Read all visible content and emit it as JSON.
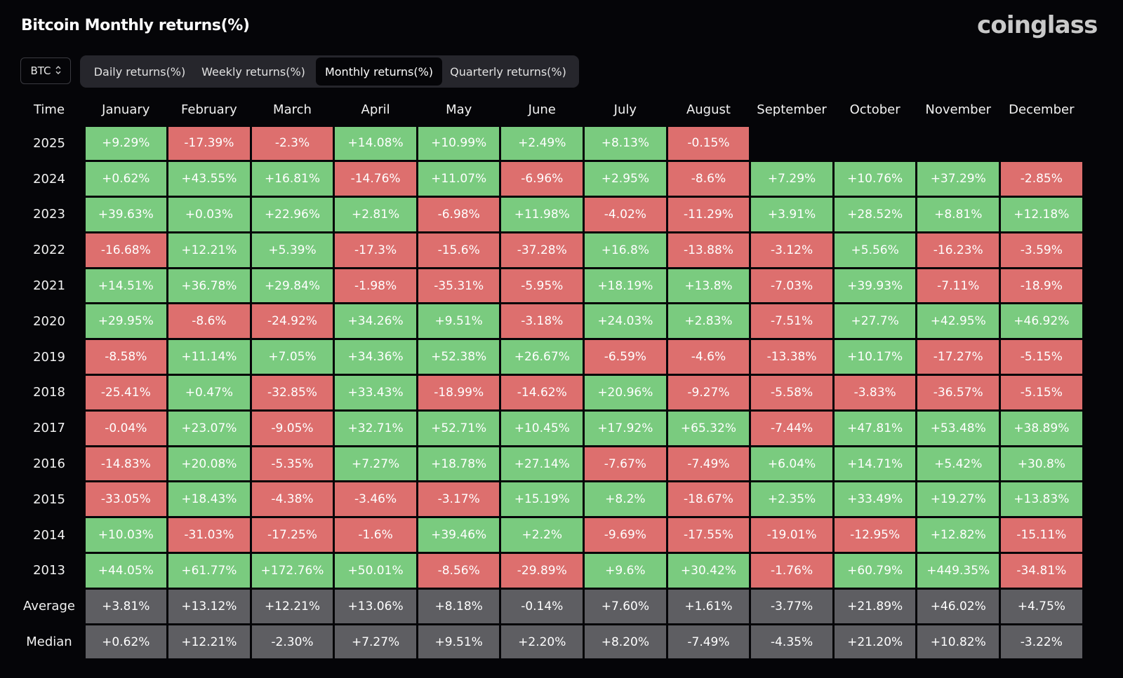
{
  "header": {
    "title": "Bitcoin Monthly returns(%)",
    "logo_text": "coinglass"
  },
  "asset_select": {
    "value": "BTC",
    "icon": "sort-chevrons-icon"
  },
  "tabs": [
    {
      "label": "Daily returns(%)",
      "active": false
    },
    {
      "label": "Weekly returns(%)",
      "active": false
    },
    {
      "label": "Monthly returns(%)",
      "active": true
    },
    {
      "label": "Quarterly returns(%)",
      "active": false
    }
  ],
  "colors": {
    "positive": "#7acb7f",
    "negative": "#dd6f6e",
    "stat": "#5e5e62",
    "background": "#050508"
  },
  "table": {
    "corner": "Time",
    "months": [
      "January",
      "February",
      "March",
      "April",
      "May",
      "June",
      "July",
      "August",
      "September",
      "October",
      "November",
      "December"
    ],
    "rows": [
      {
        "year": "2025",
        "values": [
          "+9.29%",
          "-17.39%",
          "-2.3%",
          "+14.08%",
          "+10.99%",
          "+2.49%",
          "+8.13%",
          "-0.15%",
          "",
          "",
          "",
          ""
        ]
      },
      {
        "year": "2024",
        "values": [
          "+0.62%",
          "+43.55%",
          "+16.81%",
          "-14.76%",
          "+11.07%",
          "-6.96%",
          "+2.95%",
          "-8.6%",
          "+7.29%",
          "+10.76%",
          "+37.29%",
          "-2.85%"
        ]
      },
      {
        "year": "2023",
        "values": [
          "+39.63%",
          "+0.03%",
          "+22.96%",
          "+2.81%",
          "-6.98%",
          "+11.98%",
          "-4.02%",
          "-11.29%",
          "+3.91%",
          "+28.52%",
          "+8.81%",
          "+12.18%"
        ]
      },
      {
        "year": "2022",
        "values": [
          "-16.68%",
          "+12.21%",
          "+5.39%",
          "-17.3%",
          "-15.6%",
          "-37.28%",
          "+16.8%",
          "-13.88%",
          "-3.12%",
          "+5.56%",
          "-16.23%",
          "-3.59%"
        ]
      },
      {
        "year": "2021",
        "values": [
          "+14.51%",
          "+36.78%",
          "+29.84%",
          "-1.98%",
          "-35.31%",
          "-5.95%",
          "+18.19%",
          "+13.8%",
          "-7.03%",
          "+39.93%",
          "-7.11%",
          "-18.9%"
        ]
      },
      {
        "year": "2020",
        "values": [
          "+29.95%",
          "-8.6%",
          "-24.92%",
          "+34.26%",
          "+9.51%",
          "-3.18%",
          "+24.03%",
          "+2.83%",
          "-7.51%",
          "+27.7%",
          "+42.95%",
          "+46.92%"
        ]
      },
      {
        "year": "2019",
        "values": [
          "-8.58%",
          "+11.14%",
          "+7.05%",
          "+34.36%",
          "+52.38%",
          "+26.67%",
          "-6.59%",
          "-4.6%",
          "-13.38%",
          "+10.17%",
          "-17.27%",
          "-5.15%"
        ]
      },
      {
        "year": "2018",
        "values": [
          "-25.41%",
          "+0.47%",
          "-32.85%",
          "+33.43%",
          "-18.99%",
          "-14.62%",
          "+20.96%",
          "-9.27%",
          "-5.58%",
          "-3.83%",
          "-36.57%",
          "-5.15%"
        ]
      },
      {
        "year": "2017",
        "values": [
          "-0.04%",
          "+23.07%",
          "-9.05%",
          "+32.71%",
          "+52.71%",
          "+10.45%",
          "+17.92%",
          "+65.32%",
          "-7.44%",
          "+47.81%",
          "+53.48%",
          "+38.89%"
        ]
      },
      {
        "year": "2016",
        "values": [
          "-14.83%",
          "+20.08%",
          "-5.35%",
          "+7.27%",
          "+18.78%",
          "+27.14%",
          "-7.67%",
          "-7.49%",
          "+6.04%",
          "+14.71%",
          "+5.42%",
          "+30.8%"
        ]
      },
      {
        "year": "2015",
        "values": [
          "-33.05%",
          "+18.43%",
          "-4.38%",
          "-3.46%",
          "-3.17%",
          "+15.19%",
          "+8.2%",
          "-18.67%",
          "+2.35%",
          "+33.49%",
          "+19.27%",
          "+13.83%"
        ]
      },
      {
        "year": "2014",
        "values": [
          "+10.03%",
          "-31.03%",
          "-17.25%",
          "-1.6%",
          "+39.46%",
          "+2.2%",
          "-9.69%",
          "-17.55%",
          "-19.01%",
          "-12.95%",
          "+12.82%",
          "-15.11%"
        ]
      },
      {
        "year": "2013",
        "values": [
          "+44.05%",
          "+61.77%",
          "+172.76%",
          "+50.01%",
          "-8.56%",
          "-29.89%",
          "+9.6%",
          "+30.42%",
          "-1.76%",
          "+60.79%",
          "+449.35%",
          "-34.81%"
        ]
      }
    ],
    "stats": [
      {
        "label": "Average",
        "values": [
          "+3.81%",
          "+13.12%",
          "+12.21%",
          "+13.06%",
          "+8.18%",
          "-0.14%",
          "+7.60%",
          "+1.61%",
          "-3.77%",
          "+21.89%",
          "+46.02%",
          "+4.75%"
        ]
      },
      {
        "label": "Median",
        "values": [
          "+0.62%",
          "+12.21%",
          "-2.30%",
          "+7.27%",
          "+9.51%",
          "+2.20%",
          "+8.20%",
          "-7.49%",
          "-4.35%",
          "+21.20%",
          "+10.82%",
          "-3.22%"
        ]
      }
    ]
  }
}
